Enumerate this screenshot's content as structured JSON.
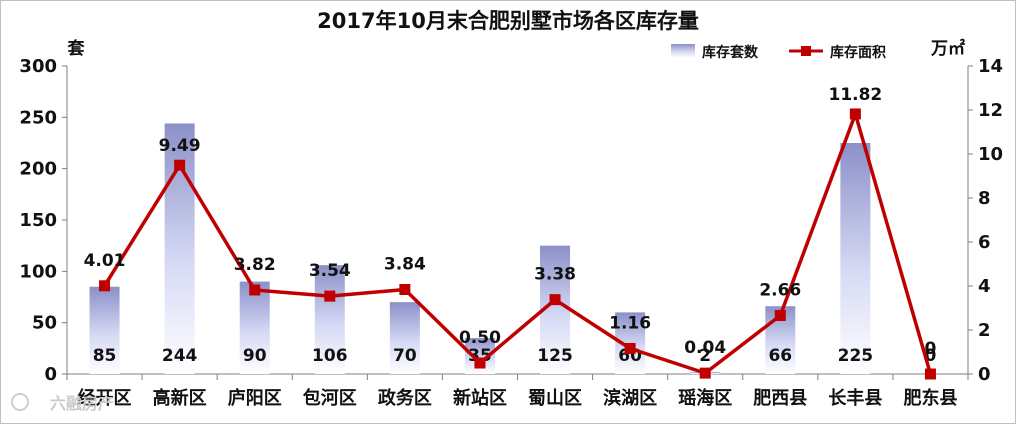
{
  "chart_data": {
    "type": "bar",
    "title": "2017年10月末合肥别墅市场各区库存量",
    "ylabel_left": "套",
    "ylabel_right": "万㎡",
    "categories": [
      "经开区",
      "高新区",
      "庐阳区",
      "包河区",
      "政务区",
      "新站区",
      "蜀山区",
      "滨湖区",
      "瑶海区",
      "肥西县",
      "长丰县",
      "肥东县"
    ],
    "series": [
      {
        "name": "库存套数",
        "type": "bar",
        "axis": "left",
        "values": [
          85,
          244,
          90,
          106,
          70,
          35,
          125,
          60,
          2,
          66,
          225,
          0
        ],
        "labels": [
          "85",
          "244",
          "90",
          "106",
          "70",
          "35",
          "125",
          "60",
          "2",
          "66",
          "225",
          ""
        ]
      },
      {
        "name": "库存面积",
        "type": "line",
        "axis": "right",
        "values": [
          4.01,
          9.49,
          3.82,
          3.54,
          3.84,
          0.5,
          3.38,
          1.16,
          0.04,
          2.66,
          11.82,
          0
        ],
        "labels": [
          "4.01",
          "9.49",
          "3.82",
          "3.54",
          "3.84",
          "0.50",
          "3.38",
          "1.16",
          "0.04",
          "2.66",
          "11.82",
          "0"
        ]
      }
    ],
    "extra_labels": [
      "0"
    ],
    "ylim_left": [
      0,
      300
    ],
    "ylim_right": [
      0,
      14
    ],
    "yticks_left": [
      "0",
      "50",
      "100",
      "150",
      "200",
      "250",
      "300"
    ],
    "yticks_right": [
      "0",
      "2",
      "4",
      "6",
      "8",
      "10",
      "12",
      "14"
    ],
    "grid": false,
    "legend": "top-right",
    "colors": {
      "bar_top": "#8c91c8",
      "bar_bottom": "#ffffff",
      "line": "#c00000",
      "marker": "#c00000"
    }
  },
  "watermark": "六融房产"
}
